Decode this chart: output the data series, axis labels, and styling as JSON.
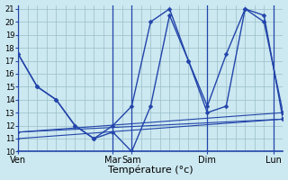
{
  "xlabel": "Température (°c)",
  "background_color": "#cce8f0",
  "grid_color": "#9bbfc8",
  "line_color": "#2244aa",
  "ylim": [
    10,
    21
  ],
  "yticks": [
    10,
    11,
    12,
    13,
    14,
    15,
    16,
    17,
    18,
    19,
    20,
    21
  ],
  "xlabel_fontsize": 8,
  "ytick_fontsize": 6,
  "xtick_fontsize": 7,
  "day_labels": [
    "Ven",
    "Mar",
    "Sam",
    "Dim",
    "Lun"
  ],
  "day_x": [
    0,
    10,
    12,
    20,
    27
  ],
  "separator_x": [
    0,
    10,
    12,
    20,
    27
  ],
  "xlim": [
    0,
    28
  ],
  "series": [
    {
      "x": [
        0,
        2,
        4,
        6,
        8,
        10,
        12,
        14,
        16,
        18,
        20,
        22,
        24,
        26,
        28
      ],
      "y": [
        17.5,
        15.0,
        14.0,
        12.0,
        11.0,
        12.0,
        13.5,
        20.0,
        21.0,
        17.0,
        13.5,
        17.5,
        21.0,
        20.5,
        12.5
      ]
    },
    {
      "x": [
        0,
        2,
        4,
        6,
        8,
        10,
        12,
        14,
        16,
        18,
        20,
        22,
        24,
        26,
        28
      ],
      "y": [
        17.5,
        15.0,
        14.0,
        12.0,
        11.0,
        11.5,
        10.0,
        13.5,
        20.5,
        17.0,
        13.0,
        13.5,
        21.0,
        20.0,
        13.0
      ]
    },
    {
      "x": [
        0,
        28
      ],
      "y": [
        11.5,
        13.0
      ]
    },
    {
      "x": [
        0,
        28
      ],
      "y": [
        11.5,
        12.5
      ]
    },
    {
      "x": [
        0,
        28
      ],
      "y": [
        11.0,
        12.5
      ]
    }
  ],
  "series_styles": [
    {
      "linestyle": "-",
      "linewidth": 1.0,
      "marker": "D",
      "markersize": 2.5
    },
    {
      "linestyle": "-",
      "linewidth": 1.0,
      "marker": "D",
      "markersize": 2.5
    },
    {
      "linestyle": "-",
      "linewidth": 0.8,
      "marker": "D",
      "markersize": 1.5
    },
    {
      "linestyle": "-",
      "linewidth": 0.8,
      "marker": "D",
      "markersize": 1.5
    },
    {
      "linestyle": "-",
      "linewidth": 0.8,
      "marker": "D",
      "markersize": 1.5
    }
  ]
}
